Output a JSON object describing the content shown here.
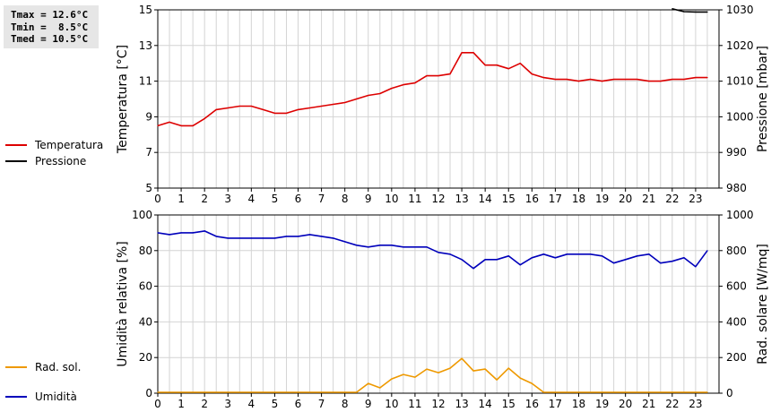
{
  "stats": {
    "tmax": "Tmax = 12.6°C",
    "tmin": "Tmin =  8.5°C",
    "tmed": "Tmed = 10.5°C"
  },
  "chart_data": [
    {
      "type": "line",
      "title": "",
      "xlabel": "",
      "x_ticks": [
        "0",
        "1",
        "2",
        "3",
        "4",
        "5",
        "6",
        "7",
        "8",
        "9",
        "10",
        "11",
        "12",
        "13",
        "14",
        "15",
        "16",
        "17",
        "18",
        "19",
        "20",
        "21",
        "22",
        "23"
      ],
      "xlim": [
        0,
        24
      ],
      "ylabel_left": "Temperatura [°C]",
      "ylabel_right": "Pressione [mbar]",
      "ylim_left": [
        5,
        15
      ],
      "ylim_right": [
        980,
        1030
      ],
      "yticks_left": [
        "5",
        "7",
        "9",
        "11",
        "13",
        "15"
      ],
      "yticks_right": [
        "980",
        "990",
        "1000",
        "1010",
        "1020",
        "1030"
      ],
      "grid": true,
      "legend_position": "left",
      "series": [
        {
          "name": "Temperatura",
          "axis": "left",
          "color": "#dd0000",
          "x": [
            0,
            0.5,
            1,
            1.5,
            2,
            2.5,
            3,
            3.5,
            4,
            4.5,
            5,
            5.5,
            6,
            6.5,
            7,
            7.5,
            8,
            8.5,
            9,
            9.5,
            10,
            10.5,
            11,
            11.5,
            12,
            12.5,
            13,
            13.5,
            14,
            14.5,
            15,
            15.5,
            16,
            16.5,
            17,
            17.5,
            18,
            18.5,
            19,
            19.5,
            20,
            20.5,
            21,
            21.5,
            22,
            22.5,
            23,
            23.5
          ],
          "values": [
            8.5,
            8.7,
            8.5,
            8.5,
            8.9,
            9.4,
            9.5,
            9.6,
            9.6,
            9.4,
            9.2,
            9.2,
            9.4,
            9.5,
            9.6,
            9.7,
            9.8,
            10.0,
            10.2,
            10.3,
            10.6,
            10.8,
            10.9,
            11.3,
            11.3,
            11.4,
            12.6,
            12.6,
            11.9,
            11.9,
            11.7,
            12.0,
            11.4,
            11.2,
            11.1,
            11.1,
            11.0,
            11.1,
            11.0,
            11.1,
            11.1,
            11.1,
            11.0,
            11.0,
            11.1,
            11.1,
            11.2,
            11.2
          ]
        },
        {
          "name": "Pressione",
          "axis": "right",
          "color": "#000000",
          "x": [
            22,
            22.5,
            23,
            23.5
          ],
          "values": [
            1030.3,
            1029.5,
            1029.4,
            1029.4
          ]
        }
      ]
    },
    {
      "type": "line",
      "title": "",
      "xlabel": "",
      "x_ticks": [
        "0",
        "1",
        "2",
        "3",
        "4",
        "5",
        "6",
        "7",
        "8",
        "9",
        "10",
        "11",
        "12",
        "13",
        "14",
        "15",
        "16",
        "17",
        "18",
        "19",
        "20",
        "21",
        "22",
        "23"
      ],
      "xlim": [
        0,
        24
      ],
      "ylabel_left": "Umidità relativa [%]",
      "ylabel_right": "Rad. solare [W/mq]",
      "ylim_left": [
        0,
        100
      ],
      "ylim_right": [
        0,
        1000
      ],
      "yticks_left": [
        "0",
        "20",
        "40",
        "60",
        "80",
        "100"
      ],
      "yticks_right": [
        "0",
        "200",
        "400",
        "600",
        "800",
        "1000"
      ],
      "grid": true,
      "legend_position": "left",
      "series": [
        {
          "name": "Umidità",
          "axis": "left",
          "color": "#0000bb",
          "x": [
            0,
            0.5,
            1,
            1.5,
            2,
            2.5,
            3,
            3.5,
            4,
            4.5,
            5,
            5.5,
            6,
            6.5,
            7,
            7.5,
            8,
            8.5,
            9,
            9.5,
            10,
            10.5,
            11,
            11.5,
            12,
            12.5,
            13,
            13.5,
            14,
            14.5,
            15,
            15.5,
            16,
            16.5,
            17,
            17.5,
            18,
            18.5,
            19,
            19.5,
            20,
            20.5,
            21,
            21.5,
            22,
            22.5,
            23,
            23.5
          ],
          "values": [
            90,
            89,
            90,
            90,
            91,
            88,
            87,
            87,
            87,
            87,
            87,
            88,
            88,
            89,
            88,
            87,
            85,
            83,
            82,
            83,
            83,
            82,
            82,
            82,
            79,
            78,
            75,
            70,
            75,
            75,
            77,
            72,
            76,
            78,
            76,
            78,
            78,
            78,
            77,
            73,
            75,
            77,
            78,
            73,
            74,
            76,
            71,
            80
          ]
        },
        {
          "name": "Rad. sol.",
          "axis": "right",
          "color": "#ee9900",
          "x": [
            0,
            0.5,
            1,
            1.5,
            2,
            2.5,
            3,
            3.5,
            4,
            4.5,
            5,
            5.5,
            6,
            6.5,
            7,
            7.5,
            8,
            8.5,
            9,
            9.5,
            10,
            10.5,
            11,
            11.5,
            12,
            12.5,
            13,
            13.5,
            14,
            14.5,
            15,
            15.5,
            16,
            16.5,
            17,
            17.5,
            18,
            18.5,
            19,
            19.5,
            20,
            20.5,
            21,
            21.5,
            22,
            22.5,
            23,
            23.5
          ],
          "values": [
            5,
            5,
            5,
            5,
            5,
            5,
            5,
            5,
            5,
            5,
            5,
            5,
            5,
            5,
            5,
            5,
            5,
            5,
            55,
            30,
            80,
            105,
            90,
            135,
            115,
            140,
            195,
            125,
            135,
            75,
            140,
            85,
            55,
            5,
            5,
            5,
            5,
            5,
            5,
            5,
            5,
            5,
            5,
            5,
            5,
            5,
            5,
            5
          ]
        }
      ]
    }
  ]
}
